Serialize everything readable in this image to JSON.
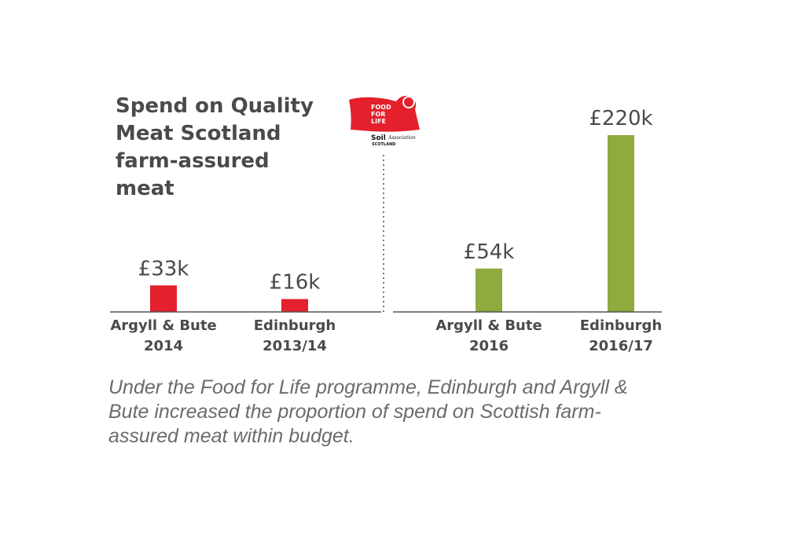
{
  "chart_data": {
    "type": "bar",
    "title": "Spend on Quality Meat Scotland farm-assured meat",
    "categories": [
      [
        "Argyll & Bute",
        "2014"
      ],
      [
        "Edinburgh",
        "2013/14"
      ],
      [
        "Argyll & Bute",
        "2016"
      ],
      [
        "Edinburgh",
        "2016/17"
      ]
    ],
    "values": [
      33,
      16,
      54,
      220
    ],
    "value_labels": [
      "£33k",
      "£16k",
      "£54k",
      "£220k"
    ],
    "unit": "£k",
    "bar_colors": [
      "#e3202b",
      "#e3202b",
      "#8faa3e",
      "#8faa3e"
    ],
    "ylim": [
      0,
      220
    ],
    "grid": false,
    "legend": "none"
  },
  "caption": "Under the Food for Life programme, Edinburgh and Argyll & Bute increased the proportion of spend on Scottish farm-assured meat within budget.",
  "logo": {
    "name": "Food for Life Soil Association Scotland logo",
    "lines": [
      "FOOD",
      "FOR",
      "LIFE",
      "Soil",
      "Association",
      "SCOTLAND"
    ]
  },
  "colors": {
    "before": "#e3202b",
    "after": "#8faa3e",
    "text": "#4a4a4a",
    "axis": "#555555"
  }
}
